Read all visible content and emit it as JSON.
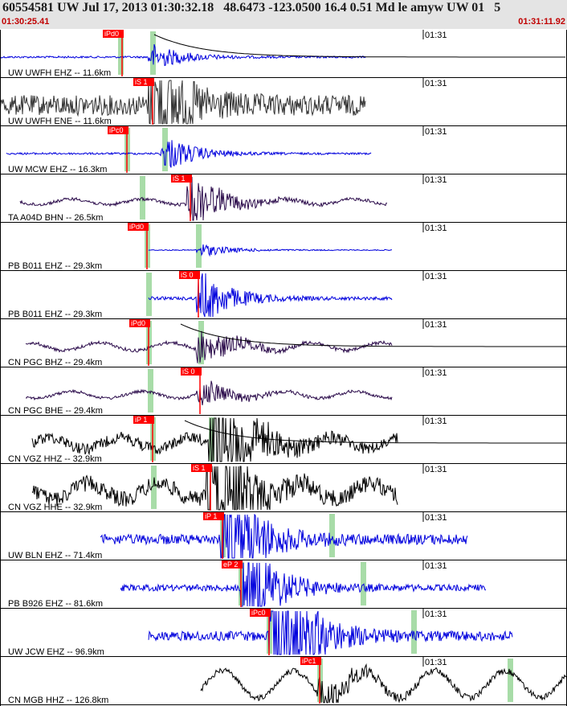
{
  "header": {
    "title": "60554581 UW Jul 17, 2013 01:30:32.18   48.6473 -123.0500 16.4 0.51 Md le amyw UW 01   5",
    "start_time": "01:30:25.41",
    "end_time": "01:31:11.92",
    "tick_label": "01:31"
  },
  "colors": {
    "pick_flag": "#ff0000",
    "pick_text": "#ffffff",
    "green_window": "#a8dca8",
    "blue_trace": "#0000dd",
    "gray_trace": "#333333",
    "purple_trace": "#2a0a4a",
    "black_trace": "#000000"
  },
  "traces": [
    {
      "label": "UW UWFH EHZ -- 11.6km",
      "pick": "iPd0",
      "color": "blue",
      "start": 0,
      "end": 455,
      "center": 190,
      "amp": 4,
      "burst": 14,
      "noise": 0.3,
      "pickx": 152,
      "greens": [
        150,
        190
      ],
      "coda": true
    },
    {
      "label": "UW UWFH ENE -- 11.6km",
      "pick": "iS 1",
      "color": "gray",
      "start": 0,
      "end": 455,
      "center": 190,
      "amp": 14,
      "burst": 6,
      "noise": 0.9,
      "pickx": 190,
      "greens": [],
      "coda": false
    },
    {
      "label": "UW MCW EHZ -- 16.3km",
      "pick": "iPc0",
      "color": "blue",
      "start": 8,
      "end": 462,
      "center": 205,
      "amp": 3,
      "burst": 20,
      "noise": 0.4,
      "pickx": 158,
      "greens": [
        158,
        205
      ],
      "coda": false
    },
    {
      "label": "TA A04D BHN -- 26.5km",
      "pick": "iS 1",
      "color": "purple",
      "start": 25,
      "end": 482,
      "center": 238,
      "amp": 5,
      "burst": 18,
      "noise": 0.4,
      "pickx": 237,
      "greens": [
        177
      ],
      "coda": false
    },
    {
      "label": "PB B011 EHZ -- 29.3km",
      "pick": "iPd0",
      "color": "blue",
      "start": 185,
      "end": 488,
      "center": 250,
      "amp": 2,
      "burst": 14,
      "noise": 0.3,
      "pickx": 183,
      "greens": [
        183,
        247
      ],
      "coda": false
    },
    {
      "label": "PB B011 EHZ -- 29.3km",
      "pick": "iS 0",
      "color": "blue",
      "start": 185,
      "end": 488,
      "center": 250,
      "amp": 4,
      "burst": 18,
      "noise": 0.5,
      "pickx": 247,
      "greens": [
        185
      ],
      "coda": false
    },
    {
      "label": "CN PGC BHZ -- 29.4km",
      "pick": "iPd0",
      "color": "purple",
      "start": 32,
      "end": 488,
      "center": 250,
      "amp": 7,
      "burst": 12,
      "noise": 0.3,
      "pickx": 185,
      "greens": [
        185,
        250
      ],
      "coda": true
    },
    {
      "label": "CN PGC BHE -- 29.4km",
      "pick": "iS 0",
      "color": "purple",
      "start": 32,
      "end": 488,
      "center": 250,
      "amp": 6,
      "burst": 10,
      "noise": 0.3,
      "pickx": 249,
      "greens": [
        187
      ],
      "coda": false
    },
    {
      "label": "CN VGZ HHZ -- 32.9km",
      "pick": "iP 1",
      "color": "black",
      "start": 40,
      "end": 495,
      "center": 265,
      "amp": 10,
      "burst": 16,
      "noise": 0.7,
      "pickx": 190,
      "greens": [
        190,
        263
      ],
      "coda": true
    },
    {
      "label": "CN VGZ HHE -- 32.9km",
      "pick": "iS 1",
      "color": "black",
      "start": 40,
      "end": 495,
      "center": 262,
      "amp": 14,
      "burst": 10,
      "noise": 0.7,
      "pickx": 262,
      "greens": [
        191
      ],
      "coda": false
    },
    {
      "label": "UW BLN EHZ -- 71.4km",
      "pick": "iP 1",
      "color": "blue",
      "start": 125,
      "end": 582,
      "center": 280,
      "amp": 8,
      "burst": 14,
      "noise": 0.8,
      "pickx": 277,
      "greens": [
        277,
        413
      ],
      "coda": false
    },
    {
      "label": "PB B926 EHZ -- 81.6km",
      "pick": "eP 2",
      "color": "blue",
      "start": 150,
      "end": 605,
      "center": 305,
      "amp": 5,
      "burst": 18,
      "noise": 0.8,
      "pickx": 300,
      "greens": [
        300,
        452
      ],
      "coda": false
    },
    {
      "label": "UW JCW EHZ -- 96.9km",
      "pick": "iPc0",
      "color": "blue",
      "start": 185,
      "end": 638,
      "center": 340,
      "amp": 6,
      "burst": 22,
      "noise": 1.0,
      "pickx": 335,
      "greens": [
        335,
        515
      ],
      "coda": false
    },
    {
      "label": "CN MGB HHZ -- 126.8km",
      "pick": "iPc1",
      "color": "black",
      "start": 250,
      "end": 706,
      "center": 400,
      "amp": 24,
      "burst": 8,
      "noise": 0.15,
      "pickx": 398,
      "greens": [
        398,
        635
      ],
      "coda": false
    }
  ]
}
